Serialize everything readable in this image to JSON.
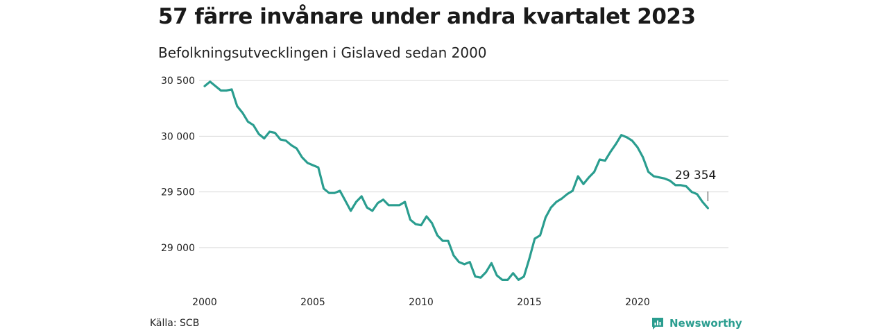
{
  "title": "57 färre invånare under andra kvartalet 2023",
  "subtitle": "Befolkningsutvecklingen i Gislaved sedan 2000",
  "source": "Källa: SCB",
  "brand": {
    "name": "Newsworthy",
    "icon": "newsworthy-logo-icon",
    "color": "#2a9d8f"
  },
  "chart_data": {
    "type": "line",
    "title": "57 färre invånare under andra kvartalet 2023",
    "subtitle": "Befolkningsutvecklingen i Gislaved sedan 2000",
    "xlabel": "",
    "ylabel": "",
    "xlim": [
      2000,
      2024.2
    ],
    "ylim": [
      28700,
      30600
    ],
    "x_ticks": [
      2000,
      2005,
      2010,
      2015,
      2020
    ],
    "x_tick_labels": [
      "2000",
      "2005",
      "2010",
      "2015",
      "2020"
    ],
    "y_ticks": [
      29000,
      29500,
      30000,
      30500
    ],
    "y_tick_labels": [
      "29 000",
      "29 500",
      "30 000",
      "30 500"
    ],
    "grid": "horizontal",
    "line_color": "#2a9d8f",
    "series": [
      {
        "x": [
          2000.0,
          2000.25,
          2000.5,
          2000.75,
          2001.0,
          2001.25,
          2001.5,
          2001.75,
          2002.0,
          2002.25,
          2002.5,
          2002.75,
          2003.0,
          2003.25,
          2003.5,
          2003.75,
          2004.0,
          2004.25,
          2004.5,
          2004.75,
          2005.0,
          2005.25,
          2005.5,
          2005.75,
          2006.0,
          2006.25,
          2006.5,
          2006.75,
          2007.0,
          2007.25,
          2007.5,
          2007.75,
          2008.0,
          2008.25,
          2008.5,
          2008.75,
          2009.0,
          2009.25,
          2009.5,
          2009.75,
          2010.0,
          2010.25,
          2010.5,
          2010.75,
          2011.0,
          2011.25,
          2011.5,
          2011.75,
          2012.0,
          2012.25,
          2012.5,
          2012.75,
          2013.0,
          2013.25,
          2013.5,
          2013.75,
          2014.0,
          2014.25,
          2014.5,
          2014.75,
          2015.0,
          2015.25,
          2015.5,
          2015.75,
          2016.0,
          2016.25,
          2016.5,
          2016.75,
          2017.0,
          2017.25,
          2017.5,
          2017.75,
          2018.0,
          2018.25,
          2018.5,
          2018.75,
          2019.0,
          2019.25,
          2019.5,
          2019.75,
          2020.0,
          2020.25,
          2020.5,
          2020.75,
          2021.0,
          2021.25,
          2021.5,
          2021.75,
          2022.0,
          2022.25,
          2022.5,
          2022.75,
          2023.0,
          2023.25
        ],
        "y": [
          30450,
          30490,
          30450,
          30410,
          30410,
          30420,
          30270,
          30210,
          30130,
          30100,
          30020,
          29980,
          30040,
          30030,
          29970,
          29960,
          29920,
          29890,
          29810,
          29760,
          29740,
          29720,
          29530,
          29490,
          29490,
          29510,
          29420,
          29330,
          29410,
          29460,
          29360,
          29330,
          29400,
          29430,
          29380,
          29380,
          29380,
          29410,
          29250,
          29210,
          29200,
          29280,
          29220,
          29110,
          29060,
          29060,
          28930,
          28870,
          28850,
          28870,
          28740,
          28730,
          28780,
          28860,
          28750,
          28710,
          28710,
          28770,
          28710,
          28740,
          28900,
          29080,
          29110,
          29270,
          29360,
          29410,
          29440,
          29480,
          29510,
          29640,
          29570,
          29630,
          29680,
          29790,
          29780,
          29860,
          29930,
          30010,
          29990,
          29960,
          29900,
          29810,
          29680,
          29640,
          29630,
          29620,
          29600,
          29560,
          29560,
          29550,
          29500,
          29480,
          29410,
          29354
        ]
      }
    ],
    "annotations": [
      {
        "text": "29 354",
        "x": 2023.25,
        "y": 29354
      }
    ]
  }
}
